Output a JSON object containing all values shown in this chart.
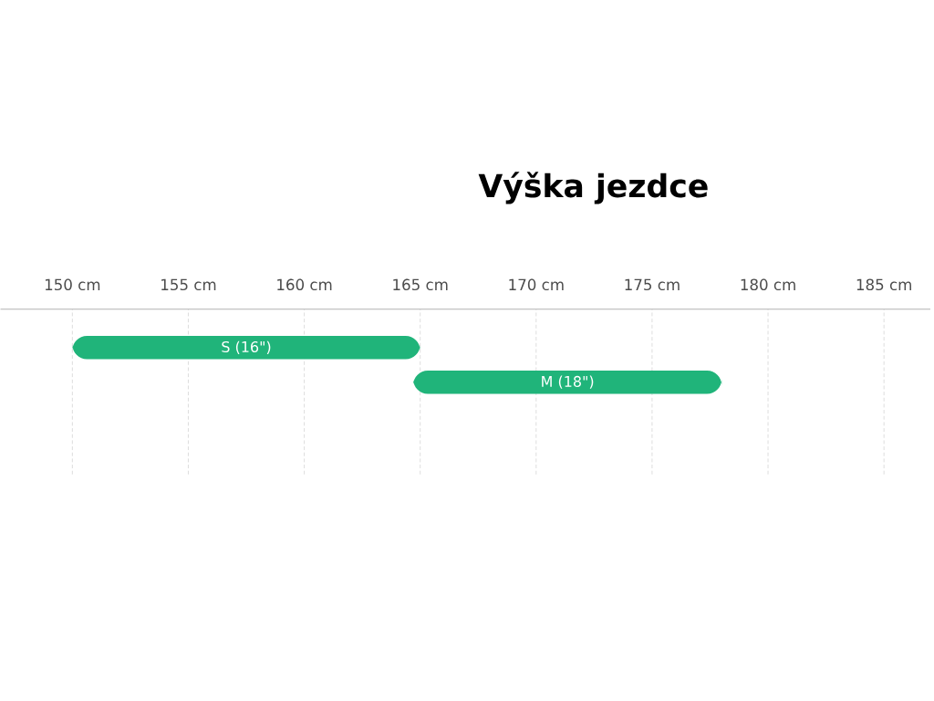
{
  "chart_data": {
    "type": "bar",
    "orientation": "horizontal",
    "title": "Výška jezdce",
    "categories": [
      "S (16\")",
      "M (18\")"
    ],
    "base": [
      150,
      164.7
    ],
    "values": [
      15,
      13.3
    ],
    "color": "#20b47a",
    "xlim": [
      146.9,
      187
    ],
    "xticks": [
      {
        "value": 150,
        "label": "150 cm"
      },
      {
        "value": 155,
        "label": "155 cm"
      },
      {
        "value": 160,
        "label": "160 cm"
      },
      {
        "value": 165,
        "label": "165 cm"
      },
      {
        "value": 170,
        "label": "170 cm"
      },
      {
        "value": 175,
        "label": "175 cm"
      },
      {
        "value": 180,
        "label": "180 cm"
      },
      {
        "value": 185,
        "label": "185 cm"
      }
    ],
    "grid": "x"
  }
}
